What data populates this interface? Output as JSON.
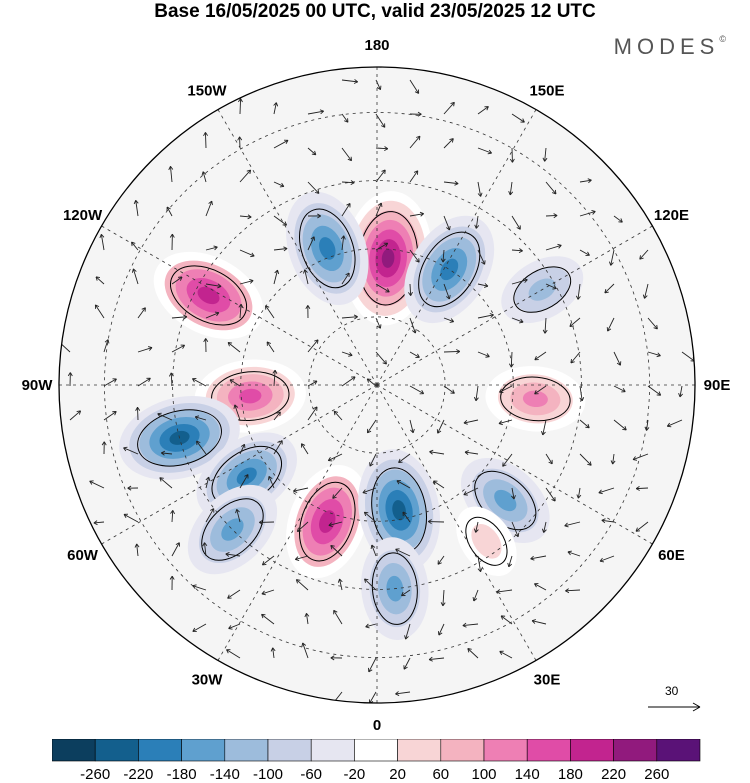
{
  "header": {
    "title": "Base 16/05/2025 00 UTC, valid 23/05/2025 12 UTC",
    "brand": "MODES",
    "brand_mark": "©"
  },
  "map": {
    "projection": "polar-stereographic-north",
    "longitude_labels": [
      {
        "id": "180",
        "text": "180",
        "lon": 180
      },
      {
        "id": "150e",
        "text": "150E",
        "lon": 150
      },
      {
        "id": "120e",
        "text": "120E",
        "lon": 120
      },
      {
        "id": "90e",
        "text": "90E",
        "lon": 90
      },
      {
        "id": "60e",
        "text": "60E",
        "lon": 60
      },
      {
        "id": "30e",
        "text": "30E",
        "lon": 30
      },
      {
        "id": "0",
        "text": "0",
        "lon": 0
      },
      {
        "id": "30w",
        "text": "30W",
        "lon": -30
      },
      {
        "id": "60w",
        "text": "60W",
        "lon": -60
      },
      {
        "id": "90w",
        "text": "90W",
        "lon": -90
      },
      {
        "id": "120w",
        "text": "120W",
        "lon": -120
      },
      {
        "id": "150w",
        "text": "150W",
        "lon": -150
      }
    ],
    "anomaly_centers": [
      {
        "lon": 175,
        "lat": 62,
        "value": 260
      },
      {
        "lon": 148,
        "lat": 60,
        "value": -200
      },
      {
        "lon": -160,
        "lat": 58,
        "value": -200
      },
      {
        "lon": -118,
        "lat": 48,
        "value": 200
      },
      {
        "lon": -85,
        "lat": 62,
        "value": 180
      },
      {
        "lon": -75,
        "lat": 45,
        "value": -220
      },
      {
        "lon": -55,
        "lat": 55,
        "value": -180
      },
      {
        "lon": -45,
        "lat": 45,
        "value": -160
      },
      {
        "lon": -20,
        "lat": 58,
        "value": 200
      },
      {
        "lon": 10,
        "lat": 62,
        "value": -220
      },
      {
        "lon": 5,
        "lat": 45,
        "value": -150
      },
      {
        "lon": 48,
        "lat": 52,
        "value": -150
      },
      {
        "lon": 85,
        "lat": 55,
        "value": 140
      },
      {
        "lon": 120,
        "lat": 48,
        "value": -100
      },
      {
        "lon": 35,
        "lat": 48,
        "value": 60
      }
    ],
    "reference_vector": {
      "label": "30"
    }
  },
  "legend": {
    "colors": [
      "#0c3e5e",
      "#135f8d",
      "#2b7fb8",
      "#5fa0cf",
      "#9dbcdc",
      "#c8d0e6",
      "#e6e6f1",
      "#ffffff",
      "#f8d5d6",
      "#f4b3c0",
      "#ee7fb4",
      "#e04ca7",
      "#c2248f",
      "#911a7d",
      "#5a1277"
    ],
    "ticks": [
      "-260",
      "-220",
      "-180",
      "-140",
      "-100",
      "-60",
      "-20",
      "20",
      "60",
      "100",
      "140",
      "180",
      "220",
      "260"
    ]
  }
}
